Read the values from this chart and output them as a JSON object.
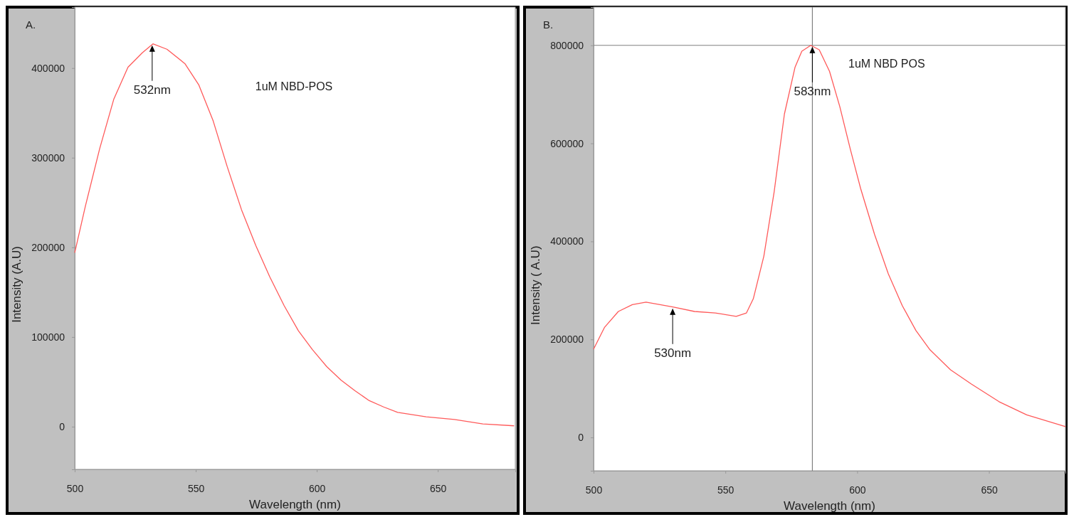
{
  "chart_data": [
    {
      "type": "line",
      "xlabel": "Wavelength (nm)",
      "ylabel": "Intensity (A.U)",
      "xlim": [
        500,
        682
      ],
      "xticks": [
        500,
        550,
        600,
        650
      ],
      "ylim": [
        -47600,
        468000
      ],
      "yticks": [
        0,
        100000,
        200000,
        300000,
        400000
      ],
      "x": [
        500,
        504.4,
        510.3,
        516.1,
        522,
        527.9,
        532.3,
        538.1,
        545.5,
        551.3,
        557.2,
        563,
        568.9,
        574.8,
        580.6,
        586.5,
        592.4,
        598.2,
        604.1,
        610,
        615.8,
        621.7,
        627.6,
        633.4,
        645.2,
        656.9,
        668.6,
        681.5
      ],
      "series": [
        {
          "color": "#ff5a5a",
          "values": [
            194000,
            246000,
            310000,
            365000,
            401000,
            417000,
            427000,
            421000,
            405000,
            381000,
            341000,
            290000,
            242000,
            202000,
            167000,
            135000,
            107000,
            86000,
            67000,
            52000,
            40000,
            29000,
            22000,
            16000,
            11000,
            8000,
            3000,
            1000
          ]
        }
      ],
      "annotations": [
        "A.",
        "1uM NBD-POS",
        {
          "text": "532nm",
          "x": 532,
          "y": 427000
        }
      ]
    },
    {
      "type": "line",
      "xlabel": "Wavelength (nm)",
      "ylabel": "Intensity ( A.U)",
      "xlim": [
        500,
        679
      ],
      "xticks": [
        500,
        550,
        600,
        650
      ],
      "ylim": [
        -68000,
        878000
      ],
      "yticks": [
        0,
        200000,
        400000,
        600000,
        800000
      ],
      "x": [
        500,
        504.2,
        509.4,
        514.7,
        519.9,
        525.2,
        530.4,
        538.3,
        546.2,
        554.1,
        558,
        560.6,
        564.6,
        568.5,
        572.4,
        576.4,
        579,
        582.4,
        585.6,
        589.5,
        593.4,
        597.4,
        601.3,
        606.6,
        611.8,
        617.1,
        622.3,
        627.6,
        635.4,
        643.3,
        653.8,
        664.3,
        679
      ],
      "series": [
        {
          "color": "#ff5a5a",
          "values": [
            180000,
            225000,
            257000,
            271000,
            276000,
            271000,
            266000,
            257000,
            254000,
            247000,
            254000,
            283000,
            370000,
            501000,
            660000,
            755000,
            788000,
            800000,
            791000,
            747000,
            675000,
            588000,
            508000,
            414000,
            334000,
            269000,
            218000,
            179000,
            138000,
            109000,
            73000,
            46000,
            22000
          ]
        }
      ],
      "ref_lines": [
        {
          "axis": "x",
          "value": 583,
          "color": "#808080"
        },
        {
          "axis": "y",
          "value": 800000,
          "color": "#808080"
        }
      ],
      "annotations": [
        "B.",
        "1uM NBD POS",
        {
          "text": "583nm",
          "x": 583,
          "y": 800000
        },
        {
          "text": "530nm",
          "x": 530,
          "y": 266000
        }
      ]
    }
  ]
}
